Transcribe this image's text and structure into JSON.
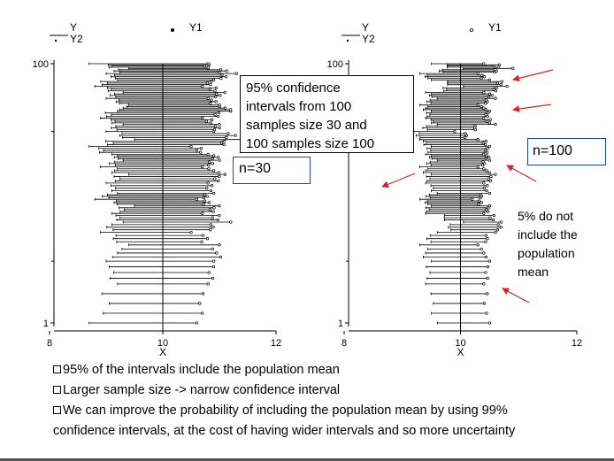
{
  "chart_data": [
    {
      "type": "scatter",
      "description_role": "left panel (n=30)",
      "legend": [
        "Y",
        "Y1",
        "Y2"
      ],
      "xlabel": "X",
      "x_ticks": [
        8,
        10,
        12
      ],
      "y_ticks": [
        1,
        100
      ],
      "y_scale": "log",
      "xlim": [
        8,
        12
      ],
      "ylim": [
        1,
        100
      ],
      "population_mean": 10,
      "intervals": [
        {
          "y": 1,
          "lower": 8.7,
          "upper": 10.6
        },
        {
          "y": 2,
          "lower": 9.2,
          "upper": 10.8
        },
        {
          "y": 3,
          "lower": 9.0,
          "upper": 10.9
        },
        {
          "y": 4,
          "lower": 9.4,
          "upper": 11.0
        },
        {
          "y": 5,
          "lower": 8.9,
          "upper": 10.5
        },
        {
          "y": 6,
          "lower": 9.3,
          "upper": 11.2
        },
        {
          "y": 7,
          "lower": 9.1,
          "upper": 10.7
        },
        {
          "y": 8,
          "lower": 9.5,
          "upper": 11.0
        },
        {
          "y": 9,
          "lower": 8.8,
          "upper": 10.6
        },
        {
          "y": 10,
          "lower": 9.2,
          "upper": 10.9
        },
        {
          "y": 12,
          "lower": 9.0,
          "upper": 10.8
        },
        {
          "y": 14,
          "lower": 9.4,
          "upper": 11.1
        },
        {
          "y": 16,
          "lower": 8.9,
          "upper": 10.7
        },
        {
          "y": 18,
          "lower": 9.3,
          "upper": 11.0
        },
        {
          "y": 20,
          "lower": 9.1,
          "upper": 10.8
        },
        {
          "y": 23,
          "lower": 8.7,
          "upper": 10.5
        },
        {
          "y": 26,
          "lower": 9.5,
          "upper": 11.6
        },
        {
          "y": 30,
          "lower": 9.0,
          "upper": 10.9
        },
        {
          "y": 34,
          "lower": 9.3,
          "upper": 11.0
        },
        {
          "y": 38,
          "lower": 8.9,
          "upper": 10.7
        },
        {
          "y": 43,
          "lower": 9.2,
          "upper": 11.2
        },
        {
          "y": 48,
          "lower": 9.4,
          "upper": 11.0
        },
        {
          "y": 54,
          "lower": 9.0,
          "upper": 10.8
        },
        {
          "y": 60,
          "lower": 9.3,
          "upper": 11.1
        },
        {
          "y": 67,
          "lower": 8.8,
          "upper": 10.7
        },
        {
          "y": 75,
          "lower": 9.2,
          "upper": 10.9
        },
        {
          "y": 84,
          "lower": 9.0,
          "upper": 11.3
        },
        {
          "y": 92,
          "lower": 9.4,
          "upper": 10.8
        },
        {
          "y": 100,
          "lower": 8.7,
          "upper": 10.8
        }
      ]
    },
    {
      "type": "scatter",
      "description_role": "right panel (n=100)",
      "legend": [
        "Y",
        "Y1",
        "Y2"
      ],
      "xlabel": "X",
      "x_ticks": [
        8,
        10,
        12
      ],
      "y_ticks": [
        1,
        100
      ],
      "y_scale": "log",
      "xlim": [
        8,
        12
      ],
      "ylim": [
        1,
        100
      ],
      "population_mean": 10,
      "intervals": [
        {
          "y": 1,
          "lower": 9.6,
          "upper": 10.5
        },
        {
          "y": 2,
          "lower": 9.4,
          "upper": 10.4
        },
        {
          "y": 3,
          "lower": 9.5,
          "upper": 10.5
        },
        {
          "y": 4,
          "lower": 9.3,
          "upper": 10.3
        },
        {
          "y": 5,
          "lower": 9.6,
          "upper": 10.6
        },
        {
          "y": 6,
          "lower": 10.05,
          "upper": 10.7
        },
        {
          "y": 7,
          "lower": 9.4,
          "upper": 10.4
        },
        {
          "y": 8,
          "lower": 9.5,
          "upper": 10.5
        },
        {
          "y": 9,
          "lower": 9.3,
          "upper": 10.2
        },
        {
          "y": 10,
          "lower": 9.6,
          "upper": 10.5
        },
        {
          "y": 12,
          "lower": 9.4,
          "upper": 10.4
        },
        {
          "y": 14,
          "lower": 9.5,
          "upper": 10.6
        },
        {
          "y": 16,
          "lower": 9.3,
          "upper": 10.3
        },
        {
          "y": 18,
          "lower": 9.6,
          "upper": 10.5
        },
        {
          "y": 20,
          "lower": 9.4,
          "upper": 10.4
        },
        {
          "y": 23,
          "lower": 9.5,
          "upper": 10.5
        },
        {
          "y": 26,
          "lower": 9.3,
          "upper": 10.3
        },
        {
          "y": 30,
          "lower": 9.2,
          "upper": 9.9
        },
        {
          "y": 34,
          "lower": 9.6,
          "upper": 10.6
        },
        {
          "y": 38,
          "lower": 9.4,
          "upper": 10.4
        },
        {
          "y": 43,
          "lower": 9.5,
          "upper": 10.5
        },
        {
          "y": 48,
          "lower": 9.3,
          "upper": 10.3
        },
        {
          "y": 54,
          "lower": 9.6,
          "upper": 10.6
        },
        {
          "y": 60,
          "lower": 9.4,
          "upper": 10.4
        },
        {
          "y": 67,
          "lower": 10.05,
          "upper": 10.8
        },
        {
          "y": 75,
          "lower": 9.5,
          "upper": 10.5
        },
        {
          "y": 84,
          "lower": 9.3,
          "upper": 10.3
        },
        {
          "y": 92,
          "lower": 10.05,
          "upper": 10.9
        },
        {
          "y": 100,
          "lower": 9.5,
          "upper": 10.4
        }
      ]
    }
  ],
  "annotations": {
    "box_main": [
      "95% confidence",
      "intervals from 100",
      "samples size 30 and",
      "100 samples size 100"
    ],
    "n30": "n=30",
    "n100": "n=100",
    "note_miss": [
      "5% do not",
      "include the",
      "population",
      "mean"
    ]
  },
  "bullets": [
    "95% of the intervals include the population mean",
    "Larger sample size -> narrow confidence interval",
    "We can improve the probability of including the population mean by using 99%",
    "confidence intervals, at the cost of having wider intervals and so more uncertainty"
  ],
  "colors": {
    "axes": "#000000",
    "highlight_border": "#1f3fbf",
    "arrows": "#e02020",
    "rule": "#555555"
  }
}
